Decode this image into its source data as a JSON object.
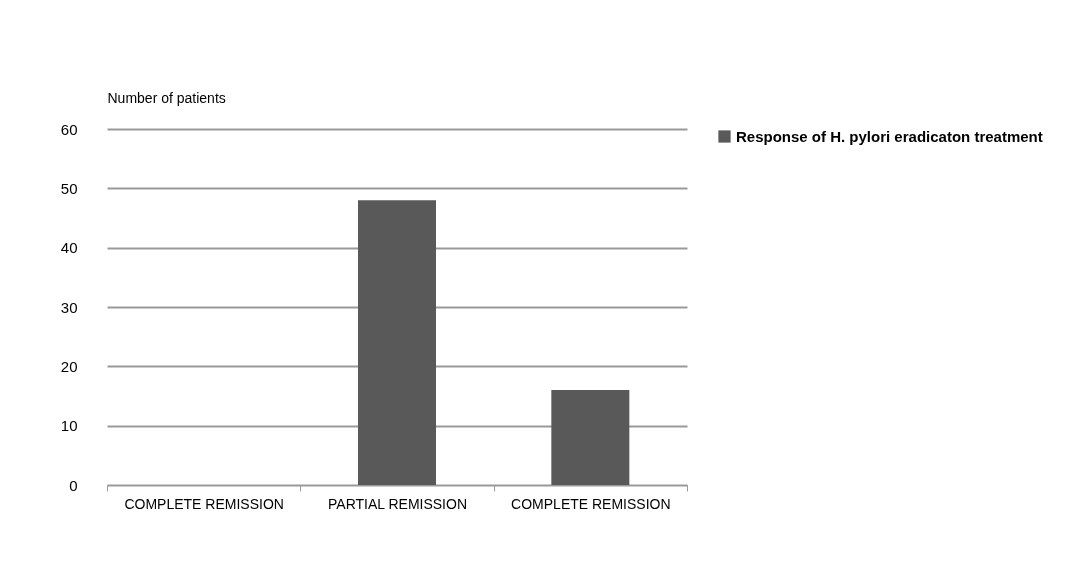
{
  "chart_data": {
    "type": "bar",
    "ylabel": "Number of patients",
    "categories": [
      "COMPLETE REMISSION",
      "PARTIAL REMISSION",
      "COMPLETE REMISSION"
    ],
    "series": [
      {
        "name": "Response of H. pylori eradicaton treatment",
        "color": "#595959",
        "values": [
          0,
          48,
          16
        ]
      }
    ],
    "ylim": [
      0,
      60
    ],
    "yticks": [
      0,
      10,
      20,
      30,
      40,
      50,
      60
    ],
    "grid": "y",
    "legend": "right"
  }
}
